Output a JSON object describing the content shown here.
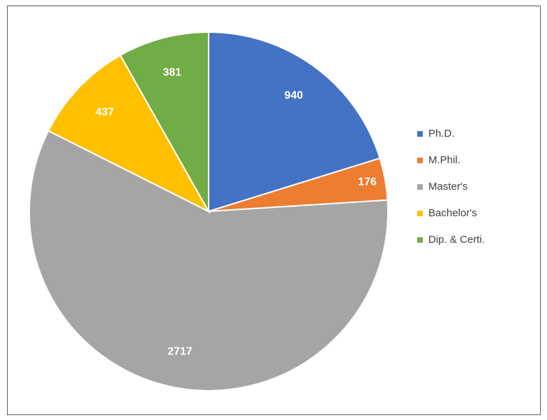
{
  "chart_data": {
    "type": "pie",
    "categories": [
      "Ph.D.",
      "M.Phil.",
      "Master's",
      "Bachelor's",
      "Dip. & Certi."
    ],
    "values": [
      940,
      176,
      2717,
      437,
      381
    ],
    "colors": [
      "#4472c4",
      "#ed7d31",
      "#a5a5a5",
      "#ffc000",
      "#70ad47"
    ],
    "legend": "right"
  }
}
